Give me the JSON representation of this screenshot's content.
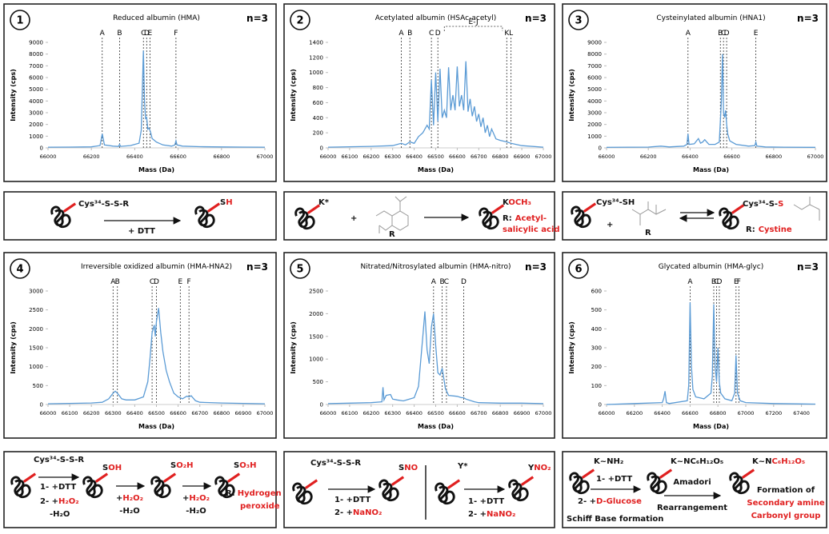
{
  "chart_data": [
    {
      "type": "line",
      "label": "1",
      "title": "Reduced albumin (HMA)",
      "n": "n=3",
      "ylabel": "Intensity (cps)",
      "xlabel": "Mass (Da)",
      "color": "#5b9bd5",
      "xlim": [
        66000,
        67000
      ],
      "xticks": [
        66000,
        66200,
        66400,
        66600,
        66800,
        67000
      ],
      "ylim": [
        0,
        9000
      ],
      "yticks": [
        0,
        1000,
        2000,
        3000,
        4000,
        5000,
        6000,
        7000,
        8000,
        9000
      ],
      "annotations": [
        {
          "label": "A",
          "x": 66250
        },
        {
          "label": "B",
          "x": 66330
        },
        {
          "label": "C",
          "x": 66440
        },
        {
          "label": "D",
          "x": 66455
        },
        {
          "label": "E",
          "x": 66470
        },
        {
          "label": "F",
          "x": 66590
        }
      ],
      "x": [
        66000,
        66100,
        66200,
        66240,
        66250,
        66260,
        66300,
        66325,
        66330,
        66335,
        66380,
        66420,
        66430,
        66440,
        66445,
        66450,
        66455,
        66460,
        66465,
        66470,
        66475,
        66480,
        66500,
        66530,
        66570,
        66585,
        66590,
        66595,
        66620,
        66700,
        66800,
        66900,
        67000
      ],
      "values": [
        60,
        70,
        90,
        200,
        1200,
        250,
        150,
        120,
        300,
        130,
        200,
        400,
        1500,
        8300,
        4000,
        2500,
        2600,
        1600,
        1700,
        1500,
        1200,
        800,
        500,
        250,
        150,
        250,
        600,
        250,
        150,
        100,
        80,
        70,
        60
      ]
    },
    {
      "type": "line",
      "label": "2",
      "title": "Acetylated albumin (HSAc-acetyl)",
      "n": "n=3",
      "ylabel": "Intensity (cps)",
      "xlabel": "Mass (Da)",
      "color": "#5b9bd5",
      "xlim": [
        66000,
        67000
      ],
      "xticks": [
        66000,
        66100,
        66200,
        66300,
        66400,
        66500,
        66600,
        66700,
        66800,
        66900,
        67000
      ],
      "ylim": [
        0,
        1400
      ],
      "yticks": [
        0,
        200,
        400,
        600,
        800,
        1000,
        1200,
        1400
      ],
      "annotations": [
        {
          "label": "A",
          "x": 66340
        },
        {
          "label": "B",
          "x": 66380
        },
        {
          "label": "C",
          "x": 66480
        },
        {
          "label": "D",
          "x": 66510
        },
        {
          "label": "K",
          "x": 66830
        },
        {
          "label": "L",
          "x": 66850
        }
      ],
      "bracket": {
        "label": "E-J",
        "from": 66540,
        "to": 66810
      },
      "x": [
        66000,
        66200,
        66300,
        66340,
        66360,
        66380,
        66400,
        66420,
        66440,
        66460,
        66470,
        66480,
        66490,
        66500,
        66510,
        66520,
        66530,
        66540,
        66550,
        66560,
        66570,
        66580,
        66590,
        66600,
        66610,
        66620,
        66630,
        66640,
        66650,
        66660,
        66670,
        66680,
        66690,
        66700,
        66710,
        66720,
        66730,
        66740,
        66750,
        66760,
        66780,
        66800,
        66830,
        66850,
        66900,
        67000
      ],
      "values": [
        10,
        20,
        30,
        60,
        40,
        80,
        60,
        150,
        200,
        300,
        250,
        900,
        300,
        1000,
        350,
        1050,
        400,
        500,
        400,
        1070,
        500,
        700,
        500,
        1080,
        550,
        700,
        500,
        1150,
        480,
        650,
        420,
        550,
        350,
        450,
        280,
        400,
        200,
        300,
        150,
        250,
        120,
        100,
        80,
        60,
        30,
        10
      ]
    },
    {
      "type": "line",
      "label": "3",
      "title": "Cysteinylated albumin (HNA1)",
      "n": "n=3",
      "ylabel": "Intensity (cps)",
      "xlabel": "Mass (Da)",
      "color": "#5b9bd5",
      "xlim": [
        66000,
        67000
      ],
      "xticks": [
        66000,
        66200,
        66400,
        66600,
        66800,
        67000
      ],
      "ylim": [
        0,
        9000
      ],
      "yticks": [
        0,
        1000,
        2000,
        3000,
        4000,
        5000,
        6000,
        7000,
        8000,
        9000
      ],
      "annotations": [
        {
          "label": "A",
          "x": 66390
        },
        {
          "label": "B",
          "x": 66545
        },
        {
          "label": "C",
          "x": 66560
        },
        {
          "label": "D",
          "x": 66575
        },
        {
          "label": "E",
          "x": 66715
        }
      ],
      "x": [
        66000,
        66200,
        66260,
        66300,
        66370,
        66385,
        66390,
        66395,
        66420,
        66440,
        66450,
        66460,
        66470,
        66480,
        66490,
        66520,
        66540,
        66550,
        66555,
        66560,
        66565,
        66570,
        66575,
        66580,
        66590,
        66620,
        66680,
        66710,
        66715,
        66720,
        66760,
        66850,
        67000
      ],
      "values": [
        50,
        70,
        150,
        80,
        150,
        300,
        1200,
        300,
        350,
        800,
        400,
        500,
        700,
        500,
        300,
        300,
        500,
        4000,
        8000,
        3000,
        2600,
        3200,
        2000,
        1200,
        600,
        300,
        150,
        200,
        500,
        150,
        80,
        60,
        50
      ]
    },
    {
      "type": "line",
      "label": "4",
      "title": "Irreversible oxidized albumin (HMA-HNA2)",
      "n": "n=3",
      "ylabel": "Intensity (cps)",
      "xlabel": "Mass (Da)",
      "color": "#5b9bd5",
      "xlim": [
        66000,
        67000
      ],
      "xticks": [
        66000,
        66100,
        66200,
        66300,
        66400,
        66500,
        66600,
        66700,
        66800,
        66900,
        67000
      ],
      "ylim": [
        0,
        3000
      ],
      "yticks": [
        0,
        500,
        1000,
        1500,
        2000,
        2500,
        3000
      ],
      "annotations": [
        {
          "label": "A",
          "x": 66300
        },
        {
          "label": "B",
          "x": 66320
        },
        {
          "label": "C",
          "x": 66480
        },
        {
          "label": "D",
          "x": 66500
        },
        {
          "label": "E",
          "x": 66610
        },
        {
          "label": "F",
          "x": 66650
        }
      ],
      "x": [
        66000,
        66100,
        66200,
        66250,
        66280,
        66300,
        66310,
        66320,
        66340,
        66360,
        66400,
        66440,
        66460,
        66470,
        66480,
        66490,
        66495,
        66500,
        66510,
        66520,
        66530,
        66545,
        66560,
        66580,
        66600,
        66620,
        66640,
        66650,
        66660,
        66680,
        66700,
        66800,
        66900,
        67000
      ],
      "values": [
        20,
        30,
        40,
        60,
        150,
        300,
        350,
        300,
        150,
        120,
        120,
        200,
        600,
        1200,
        1900,
        2100,
        1800,
        2200,
        2550,
        1900,
        1400,
        900,
        600,
        300,
        200,
        150,
        220,
        200,
        230,
        100,
        60,
        40,
        30,
        20
      ]
    },
    {
      "type": "line",
      "label": "5",
      "title": "Nitrated/Nitrosylated albumin (HMA-nitro)",
      "n": "n=3",
      "ylabel": "Intensity (cps)",
      "xlabel": "Mass (Da)",
      "color": "#5b9bd5",
      "xlim": [
        66000,
        67000
      ],
      "xticks": [
        66000,
        66100,
        66200,
        66300,
        66400,
        66500,
        66600,
        66700,
        66800,
        66900,
        67000
      ],
      "ylim": [
        0,
        2500
      ],
      "yticks": [
        0,
        500,
        1000,
        1500,
        2000,
        2500
      ],
      "annotations": [
        {
          "label": "A",
          "x": 66490
        },
        {
          "label": "B",
          "x": 66530
        },
        {
          "label": "C",
          "x": 66550
        },
        {
          "label": "D",
          "x": 66630
        }
      ],
      "x": [
        66000,
        66100,
        66200,
        66250,
        66255,
        66260,
        66270,
        66290,
        66300,
        66320,
        66350,
        66400,
        66420,
        66440,
        66450,
        66460,
        66470,
        66480,
        66490,
        66500,
        66510,
        66520,
        66530,
        66545,
        66560,
        66600,
        66620,
        66630,
        66640,
        66680,
        66700,
        66800,
        66900,
        67000
      ],
      "values": [
        20,
        30,
        40,
        60,
        380,
        100,
        200,
        220,
        120,
        100,
        80,
        150,
        400,
        1500,
        2050,
        1200,
        900,
        1700,
        2000,
        1300,
        700,
        650,
        800,
        350,
        200,
        180,
        150,
        150,
        120,
        60,
        40,
        30,
        30,
        20
      ]
    },
    {
      "type": "line",
      "label": "6",
      "title": "Glycated albumin (HMA-glyc)",
      "n": "n=3",
      "ylabel": "Intensity (cps)",
      "xlabel": "Mass (Da)",
      "color": "#5b9bd5",
      "xlim": [
        66000,
        67500
      ],
      "xticks": [
        66000,
        66200,
        66400,
        66600,
        66800,
        67000,
        67200,
        67400
      ],
      "ylim": [
        0,
        600
      ],
      "yticks": [
        0,
        100,
        200,
        300,
        400,
        500,
        600
      ],
      "annotations": [
        {
          "label": "A",
          "x": 66600
        },
        {
          "label": "B",
          "x": 66770
        },
        {
          "label": "C",
          "x": 66790
        },
        {
          "label": "D",
          "x": 66810
        },
        {
          "label": "E",
          "x": 66930
        },
        {
          "label": "F",
          "x": 66950
        }
      ],
      "x": [
        66000,
        66200,
        66400,
        66410,
        66420,
        66430,
        66450,
        66580,
        66590,
        66600,
        66610,
        66620,
        66640,
        66700,
        66750,
        66760,
        66770,
        66780,
        66790,
        66800,
        66810,
        66820,
        66850,
        66900,
        66920,
        66930,
        66940,
        66960,
        67000,
        67200,
        67400,
        67500
      ],
      "values": [
        0,
        5,
        10,
        30,
        70,
        10,
        5,
        20,
        100,
        540,
        200,
        80,
        40,
        30,
        60,
        150,
        530,
        200,
        120,
        300,
        120,
        60,
        30,
        20,
        60,
        260,
        60,
        20,
        10,
        5,
        3,
        2
      ]
    }
  ],
  "schemes": [
    {
      "reactant": "Cys³⁴-S-S-R",
      "reagent": "+ DTT",
      "product": [
        "S",
        "H"
      ]
    },
    {
      "reactant": "K*",
      "plus": "+",
      "r": "R",
      "product": [
        "K",
        "OCH₃"
      ],
      "note": [
        "R:",
        "Acetyl-",
        "salicylic acid"
      ]
    },
    {
      "reactant": "Cys³⁴-SH",
      "plus": "+",
      "r": "R",
      "product": [
        "Cys³⁴-S-",
        "S"
      ],
      "note": [
        "R:",
        "Cystine"
      ]
    },
    {
      "reactant": "Cys³⁴-S-S-R",
      "step1": [
        "1- +DTT",
        "2- +",
        "H₂O₂",
        "-H₂O"
      ],
      "p1": [
        "S",
        "OH"
      ],
      "step2": [
        "+",
        "H₂O₂",
        "-H₂O"
      ],
      "p2": [
        "S",
        "O₂H"
      ],
      "step3": [
        "+",
        "H₂O₂",
        "-H₂O"
      ],
      "p3": [
        "S",
        "O₃H"
      ],
      "note": [
        "R:",
        "Hydrogen",
        "peroxide"
      ]
    },
    {
      "left": {
        "reactant": "Cys³⁴-S-S-R",
        "step": [
          "1- +DTT",
          "2- +",
          "NaNO₂"
        ],
        "product": [
          "S",
          "NO"
        ]
      },
      "right": {
        "reactant": "Y*",
        "step": [
          "1- +DTT",
          "2- +",
          "NaNO₂"
        ],
        "product": [
          "Y",
          "NO₂"
        ]
      }
    },
    {
      "reactant": "K~NH₂",
      "step": [
        "1- +DTT",
        "2- +",
        "D-Glucose",
        "Schiff Base formation"
      ],
      "p1": "K~NC₆H₁₂O₅",
      "step2": [
        "Amadori",
        "Rearrangement"
      ],
      "p2": [
        "K~N",
        "C₆H₁₂O₅"
      ],
      "note": [
        "Formation of",
        "Secondary amine",
        "Carbonyl group"
      ]
    }
  ]
}
